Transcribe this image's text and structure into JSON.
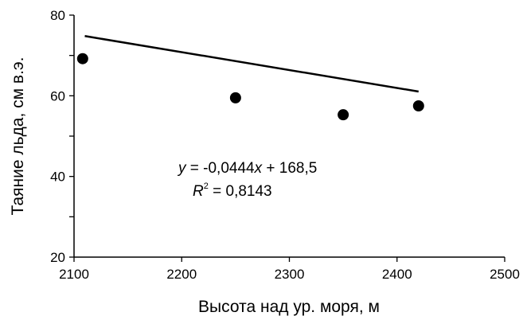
{
  "chart_data": {
    "type": "scatter",
    "xlabel": "Высота над ур. моря, м",
    "ylabel": "Таяние льда, см в.э.",
    "xlim": [
      2100,
      2500
    ],
    "ylim": [
      20,
      80
    ],
    "xticks": [
      "2100",
      "2200",
      "2300",
      "2400",
      "2500"
    ],
    "yticks": [
      "20",
      "40",
      "60",
      "80"
    ],
    "points": [
      {
        "x": 2108,
        "y": 69.2
      },
      {
        "x": 2250,
        "y": 59.5
      },
      {
        "x": 2350,
        "y": 55.3
      },
      {
        "x": 2420,
        "y": 57.5
      }
    ],
    "trendline": {
      "slope": -0.0444,
      "intercept": 168.5,
      "x_range": [
        2110,
        2420
      ]
    },
    "annotations": {
      "equation": {
        "y_var": "y",
        "eq_mid": " = -0,0444",
        "x_var": "x",
        "eq_end": " + 168,5"
      },
      "r_squared": {
        "var": "R",
        "sup": "2",
        "value": " = 0,8143"
      }
    },
    "grid": false,
    "legend": "none",
    "colors": {
      "marker": "#000000",
      "line": "#000000",
      "axis": "#000000"
    }
  }
}
